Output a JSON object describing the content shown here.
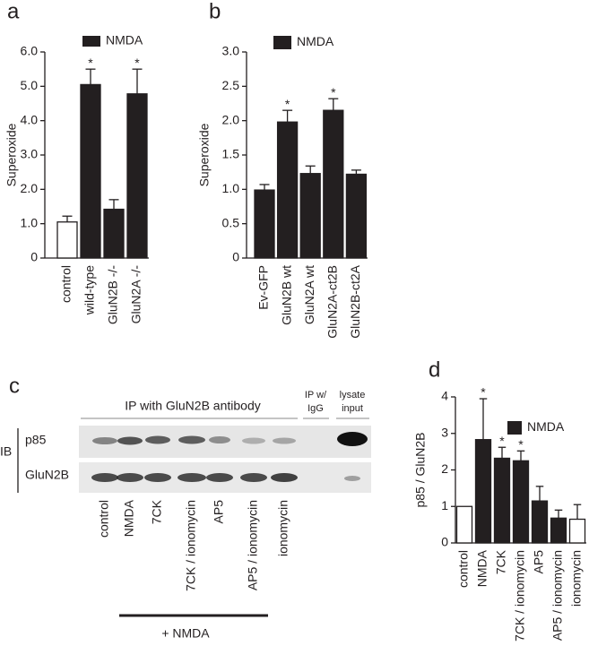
{
  "chart_data": [
    {
      "type": "bar",
      "panel_label": "a",
      "y_label": "Superoxide",
      "categories": [
        "control",
        "wild-type",
        "GluN2B -/-",
        "GluN2A -/-"
      ],
      "series": [
        {
          "name": "NMDA",
          "color": "#231f20",
          "values": [
            1.05,
            5.05,
            1.42,
            4.78
          ],
          "errors": [
            0.17,
            0.45,
            0.28,
            0.72
          ]
        }
      ],
      "bar_colors": [
        "#ffffff",
        "#231f20",
        "#231f20",
        "#231f20"
      ],
      "significance": [
        null,
        "*",
        null,
        "*"
      ],
      "ylim": [
        0,
        6
      ],
      "yticks": [
        0,
        {
          "value": 1,
          "label": "1.0"
        },
        {
          "value": 2,
          "label": "2.0"
        },
        {
          "value": 3,
          "label": "3.0"
        },
        {
          "value": 4,
          "label": "4.0"
        },
        {
          "value": 5,
          "label": "5.0"
        },
        {
          "value": 6,
          "label": "6.0"
        }
      ]
    },
    {
      "type": "bar",
      "panel_label": "b",
      "y_label": "Superoxide",
      "categories": [
        "Ev-GFP",
        "GluN2B wt",
        "GluN2A wt",
        "GluN2A-ct2B",
        "GluN2B-ct2A"
      ],
      "series": [
        {
          "name": "NMDA",
          "color": "#231f20",
          "values": [
            0.99,
            1.98,
            1.23,
            2.15,
            1.22
          ],
          "errors": [
            0.08,
            0.17,
            0.11,
            0.17,
            0.06
          ]
        }
      ],
      "bar_colors": [
        "#231f20",
        "#231f20",
        "#231f20",
        "#231f20",
        "#231f20"
      ],
      "significance": [
        null,
        "*",
        null,
        "*",
        null
      ],
      "ylim": [
        0,
        3
      ],
      "yticks": [
        0,
        0.5,
        {
          "value": 1,
          "label": "1.0"
        },
        1.5,
        {
          "value": 2,
          "label": "2.0"
        },
        2.5,
        {
          "value": 3,
          "label": "3.0"
        }
      ]
    },
    {
      "type": "bar",
      "panel_label": "d",
      "y_label": "p85 / GluN2B",
      "categories": [
        "control",
        "NMDA",
        "7CK",
        "7CK / ionomycin",
        "AP5",
        "AP5 / ionomycin",
        "ionomycin"
      ],
      "series": [
        {
          "name": "NMDA",
          "color": "#231f20",
          "values": [
            1.0,
            2.83,
            2.32,
            2.25,
            1.15,
            0.68,
            0.65
          ],
          "errors": [
            null,
            1.12,
            0.3,
            0.27,
            0.4,
            0.22,
            0.4
          ]
        }
      ],
      "bar_colors": [
        "#ffffff",
        "#231f20",
        "#231f20",
        "#231f20",
        "#231f20",
        "#231f20",
        "#ffffff"
      ],
      "significance": [
        null,
        "*",
        "*",
        "*",
        null,
        null,
        null
      ],
      "ylim": [
        0,
        4
      ],
      "yticks": [
        0,
        1,
        2,
        3,
        4
      ]
    }
  ],
  "blot": {
    "panel_label": "c",
    "ip_header": "IP with GluN2B antibody",
    "igg_header": [
      "IP w/",
      "IgG"
    ],
    "lysate_header": [
      "lysate",
      "input"
    ],
    "ib_label": "IB",
    "rows": [
      "p85",
      "GluN2B"
    ],
    "lanes": [
      "control",
      "NMDA",
      "7CK",
      "7CK / ionomycin",
      "AP5",
      "AP5 / ionomycin",
      "ionomycin"
    ],
    "treatment_label": "+ NMDA"
  }
}
